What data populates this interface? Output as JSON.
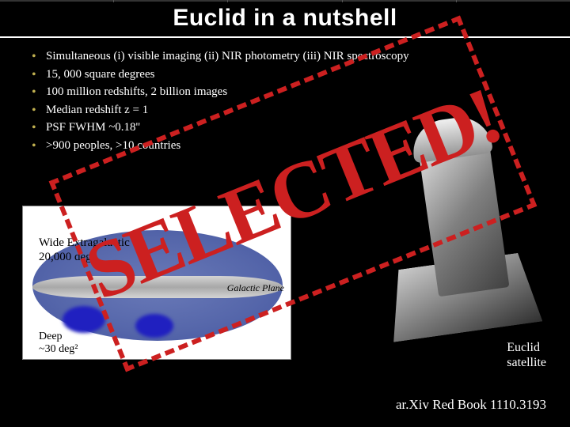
{
  "title": "Euclid in a nutshell",
  "bullets": [
    "Simultaneous (i) visible imaging (ii) NIR photometry (iii) NIR spectroscopy",
    "15, 000 square degrees",
    "100 million redshifts, 2 billion images",
    "Median redshift z = 1",
    "PSF FWHM ~0.18''",
    ">900 peoples, >10 countries"
  ],
  "diagram": {
    "wide_line1": "Wide Extragalactic",
    "wide_line2": "20,000 deg²",
    "galactic": "Galactic Plane",
    "deep_line1": "Deep",
    "deep_line2": "~30 deg²",
    "ellipse_color": "#5566aa",
    "band_color": "#b8b8b8",
    "blob_color": "#2020c0",
    "bg_color": "#ffffff"
  },
  "satellite_label_1": "Euclid",
  "satellite_label_2": "satellite",
  "arxiv": "ar.Xiv Red Book 1110.3193",
  "stamp": {
    "text": "SELECTED!",
    "color": "#cc2020",
    "border_style": "dashed",
    "rotation_deg": -22
  },
  "colors": {
    "background": "#000000",
    "text": "#ffffff",
    "bullet": "#c0b050",
    "stamp": "#cc2020"
  }
}
